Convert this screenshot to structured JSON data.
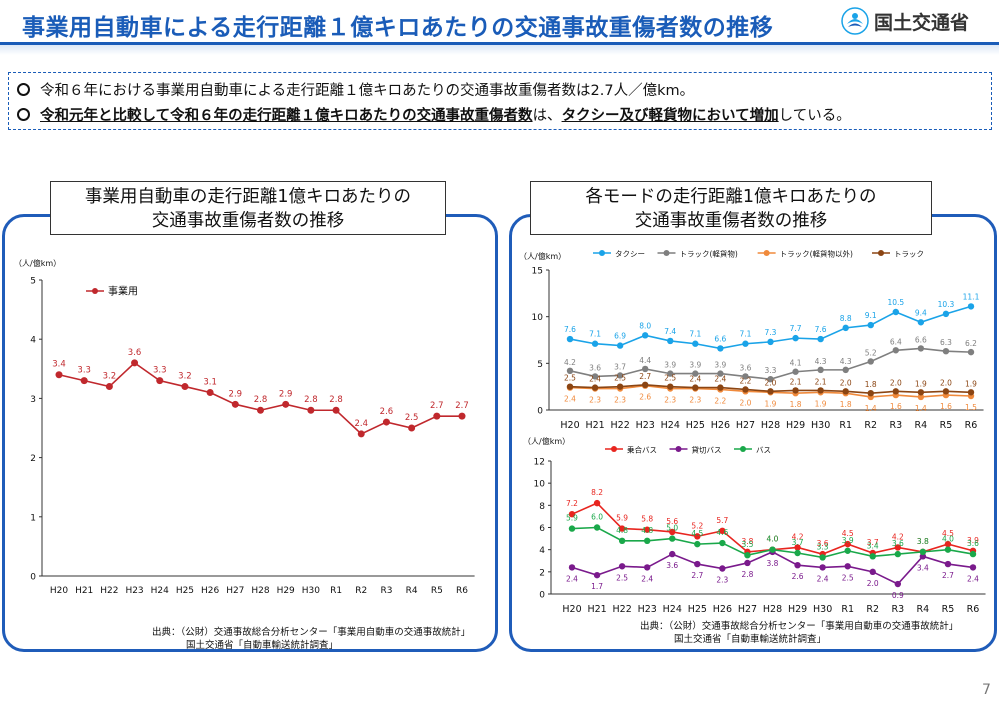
{
  "header": {
    "title": "事業用自動車による走行距離１億キロあたりの交通事故重傷者数の推移",
    "logo": "国土交通省",
    "accent": "#1a5cb8"
  },
  "summary": {
    "line1": "令和６年における事業用自動車による走行距離１億キロあたりの交通事故重傷者数は2.7人／億km。",
    "line2_a": "令和元年と比較して令和６年の走行距離１億キロあたりの交通事故重傷者数",
    "line2_b": "は、",
    "line2_c": "タクシー及び軽貨物において増加",
    "line2_d": "している。"
  },
  "left_panel": {
    "title_1": "事業用自動車の走行距離1億キロあたりの",
    "title_2": "交通事故重傷者数の推移",
    "source_1": "出典：（公財）交通事故総合分析センター「事業用自動車の交通事故統計」",
    "source_2": "国土交通省「自動車輸送統計調査」"
  },
  "right_panel": {
    "title_1": "各モードの走行距離1億キロあたりの",
    "title_2": "交通事故重傷者数の推移",
    "source_1": "出典：（公財）交通事故総合分析センター「事業用自動車の交通事故統計」",
    "source_2": "国土交通省「自動車輸送統計調査」"
  },
  "page_number": "7",
  "chart_data": [
    {
      "type": "line",
      "ylabel": "（人/億km）",
      "ylim": [
        0,
        5
      ],
      "yticks": [
        0,
        1,
        2,
        3,
        4,
        5
      ],
      "grid": false,
      "legend": "top-left",
      "categories": [
        "H20",
        "H21",
        "H22",
        "H23",
        "H24",
        "H25",
        "H26",
        "H27",
        "H28",
        "H29",
        "H30",
        "R1",
        "R2",
        "R3",
        "R4",
        "R5",
        "R6"
      ],
      "series": [
        {
          "name": "事業用",
          "color": "#c0282d",
          "values": [
            3.4,
            3.3,
            3.2,
            3.6,
            3.3,
            3.2,
            3.1,
            2.9,
            2.8,
            2.9,
            2.8,
            2.8,
            2.4,
            2.6,
            2.5,
            2.7,
            2.7
          ]
        }
      ]
    },
    {
      "type": "line",
      "ylabel": "（人/億km）",
      "ylim": [
        0,
        15
      ],
      "yticks": [
        0,
        5,
        10,
        15
      ],
      "grid": false,
      "legend": "top",
      "categories": [
        "H20",
        "H21",
        "H22",
        "H23",
        "H24",
        "H25",
        "H26",
        "H27",
        "H28",
        "H29",
        "H30",
        "R1",
        "R2",
        "R3",
        "R4",
        "R5",
        "R6"
      ],
      "series": [
        {
          "name": "タクシー",
          "color": "#1aa3e8",
          "values": [
            7.6,
            7.1,
            6.9,
            8.0,
            7.4,
            7.1,
            6.6,
            7.1,
            7.3,
            7.7,
            7.6,
            8.8,
            9.1,
            10.5,
            9.4,
            10.3,
            11.1
          ]
        },
        {
          "name": "トラック(軽貨物)",
          "color": "#7f7f7f",
          "values": [
            4.2,
            3.6,
            3.7,
            4.4,
            3.9,
            3.9,
            3.9,
            3.6,
            3.3,
            4.1,
            4.3,
            4.3,
            5.2,
            6.4,
            6.6,
            6.3,
            6.2
          ]
        },
        {
          "name": "トラック(軽貨物以外)",
          "color": "#f08a3c",
          "values": [
            2.4,
            2.3,
            2.3,
            2.6,
            2.3,
            2.3,
            2.2,
            2.0,
            1.9,
            1.8,
            1.9,
            1.8,
            1.4,
            1.6,
            1.4,
            1.6,
            1.5
          ]
        },
        {
          "name": "トラック",
          "color": "#8b4513",
          "values": [
            2.5,
            2.4,
            2.5,
            2.7,
            2.5,
            2.4,
            2.4,
            2.2,
            2.0,
            2.1,
            2.1,
            2.0,
            1.8,
            2.0,
            1.9,
            2.0,
            1.9
          ]
        }
      ]
    },
    {
      "type": "line",
      "ylabel": "（人/億km）",
      "ylim": [
        0,
        12
      ],
      "yticks": [
        0,
        2,
        4,
        6,
        8,
        10,
        12
      ],
      "grid": false,
      "legend": "top",
      "categories": [
        "H20",
        "H21",
        "H22",
        "H23",
        "H24",
        "H25",
        "H26",
        "H27",
        "H28",
        "H29",
        "H30",
        "R1",
        "R2",
        "R3",
        "R4",
        "R5",
        "R6"
      ],
      "series": [
        {
          "name": "乗合バス",
          "color": "#e8251f",
          "values": [
            7.2,
            8.2,
            5.9,
            5.8,
            5.6,
            5.2,
            5.7,
            3.8,
            4.0,
            4.2,
            3.6,
            4.5,
            3.7,
            4.2,
            3.8,
            4.5,
            3.9
          ]
        },
        {
          "name": "貸切バス",
          "color": "#7a1a8c",
          "values": [
            2.4,
            1.7,
            2.5,
            2.4,
            3.6,
            2.7,
            2.3,
            2.8,
            3.8,
            2.6,
            2.4,
            2.5,
            2.0,
            0.9,
            3.4,
            2.7,
            2.4
          ]
        },
        {
          "name": "バス",
          "color": "#1aa84a",
          "values": [
            5.9,
            6.0,
            4.8,
            4.8,
            5.0,
            4.5,
            4.6,
            3.5,
            4.0,
            3.7,
            3.3,
            3.9,
            3.4,
            3.6,
            3.8,
            4.0,
            3.6
          ]
        }
      ]
    }
  ]
}
